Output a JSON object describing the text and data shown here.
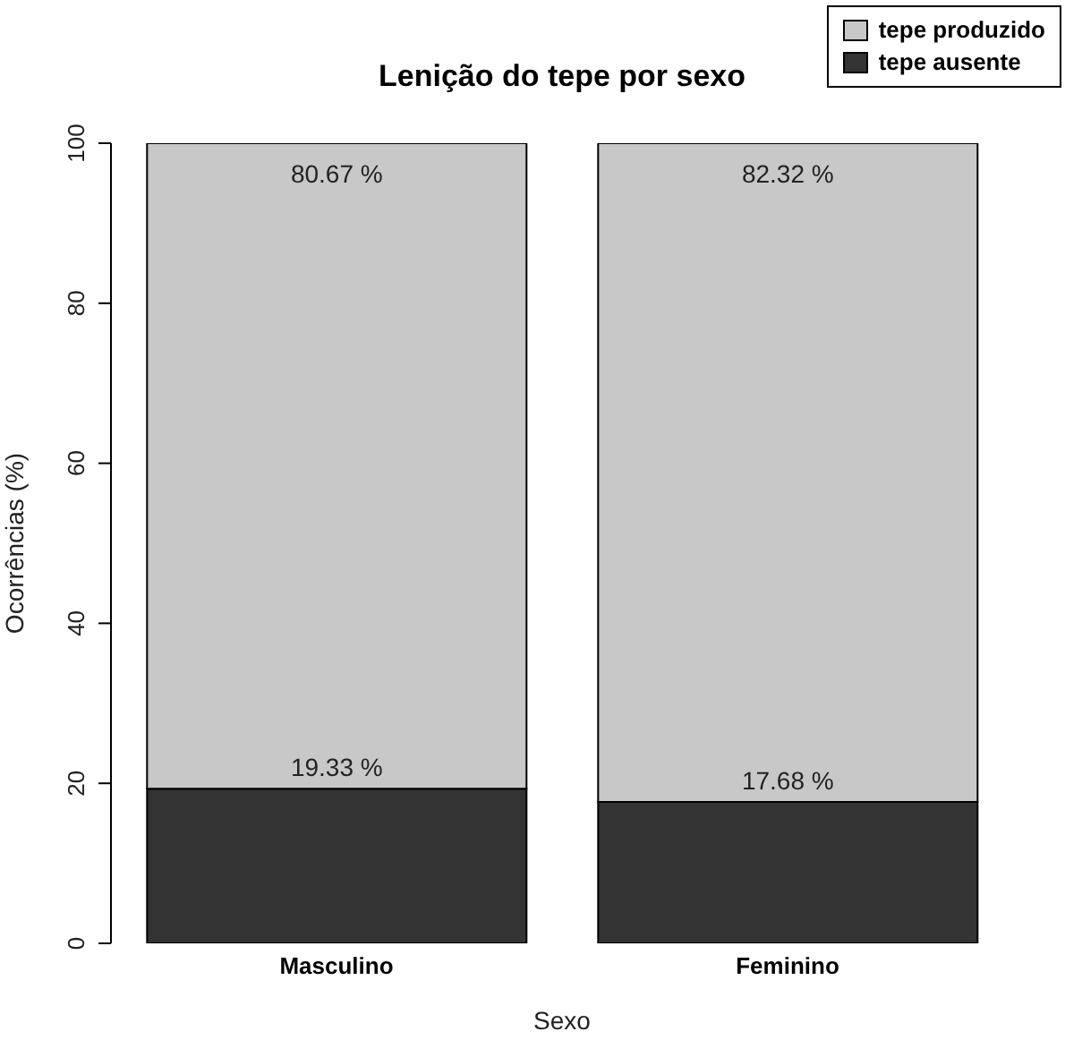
{
  "chart_data": {
    "type": "bar",
    "stacked": true,
    "title": "Lenição do tepe por sexo",
    "xlabel": "Sexo",
    "ylabel": "Ocorrências (%)",
    "categories": [
      "Masculino",
      "Feminino"
    ],
    "ylim": [
      0,
      100
    ],
    "yticks": [
      0,
      20,
      40,
      60,
      80,
      100
    ],
    "legend": "top right",
    "series": [
      {
        "name": "tepe ausente",
        "color": "#333333",
        "values": [
          19.33,
          17.68
        ],
        "value_labels": [
          "19.33 %",
          "17.68 %"
        ]
      },
      {
        "name": "tepe produzido",
        "color": "#c8c8c8",
        "values": [
          80.67,
          82.32
        ],
        "value_labels": [
          "80.67 %",
          "82.32 %"
        ]
      }
    ]
  }
}
